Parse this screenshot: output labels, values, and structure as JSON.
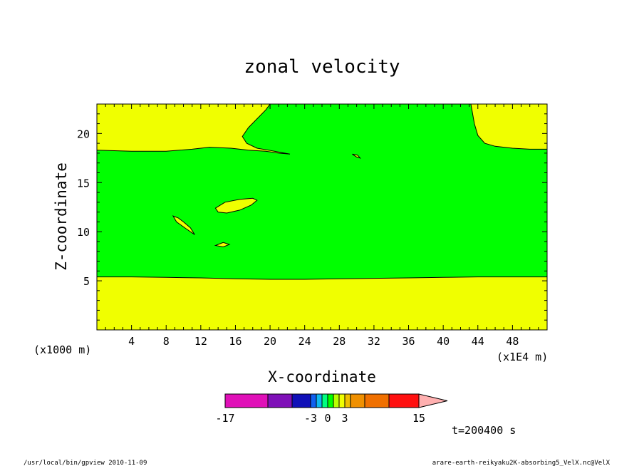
{
  "chart_data": {
    "type": "heatmap",
    "title": "zonal velocity",
    "xlabel": "X-coordinate",
    "ylabel": "Z-coordinate",
    "x_unit_left": "(x1000 m)",
    "x_unit_right": "(x1E4 m)",
    "xlim": [
      0,
      52
    ],
    "ylim": [
      0,
      23
    ],
    "x_ticks": [
      4,
      8,
      12,
      16,
      20,
      24,
      28,
      32,
      36,
      40,
      44,
      48
    ],
    "y_ticks": [
      5,
      10,
      15,
      20
    ],
    "x_tick_labels": [
      "4",
      "8",
      "12",
      "16",
      "20",
      "24",
      "28",
      "32",
      "36",
      "40",
      "44",
      "48"
    ],
    "y_tick_labels": [
      "5",
      "10",
      "15",
      "20"
    ],
    "background_color": "#f0ff00",
    "regions": [
      {
        "name": "main",
        "color": "#00ff00",
        "points": [
          [
            0,
            18.3
          ],
          [
            4,
            18.2
          ],
          [
            8,
            18.2
          ],
          [
            11,
            18.4
          ],
          [
            13,
            18.6
          ],
          [
            15.5,
            18.5
          ],
          [
            17.5,
            18.3
          ],
          [
            19.5,
            18.2
          ],
          [
            21,
            18.0
          ],
          [
            22.3,
            17.9
          ],
          [
            20.5,
            18.2
          ],
          [
            18.5,
            18.5
          ],
          [
            17.3,
            19.0
          ],
          [
            16.8,
            19.7
          ],
          [
            17.5,
            20.6
          ],
          [
            19.5,
            22.4
          ],
          [
            20,
            23
          ],
          [
            43.2,
            23
          ],
          [
            43.6,
            21
          ],
          [
            44,
            19.8
          ],
          [
            44.8,
            19.0
          ],
          [
            46,
            18.7
          ],
          [
            48,
            18.5
          ],
          [
            50,
            18.4
          ],
          [
            52,
            18.4
          ],
          [
            52,
            5.4
          ],
          [
            48,
            5.4
          ],
          [
            44,
            5.4
          ],
          [
            40,
            5.35
          ],
          [
            36,
            5.3
          ],
          [
            32,
            5.25
          ],
          [
            28,
            5.2
          ],
          [
            24,
            5.15
          ],
          [
            20,
            5.15
          ],
          [
            16,
            5.2
          ],
          [
            12,
            5.3
          ],
          [
            8,
            5.35
          ],
          [
            4,
            5.4
          ],
          [
            0,
            5.4
          ]
        ]
      }
    ],
    "islands": [
      {
        "color": "#f0ff00",
        "points": [
          [
            13.7,
            12.4
          ],
          [
            14.8,
            13.0
          ],
          [
            16.5,
            13.3
          ],
          [
            18.0,
            13.4
          ],
          [
            18.5,
            13.2
          ],
          [
            17.8,
            12.7
          ],
          [
            16.5,
            12.2
          ],
          [
            15.0,
            11.9
          ],
          [
            14.0,
            12.0
          ]
        ]
      },
      {
        "color": "#f0ff00",
        "points": [
          [
            8.8,
            11.6
          ],
          [
            9.2,
            11.0
          ],
          [
            10.3,
            10.3
          ],
          [
            11.3,
            9.7
          ],
          [
            10.8,
            10.4
          ],
          [
            10.0,
            11.0
          ],
          [
            9.4,
            11.4
          ]
        ]
      },
      {
        "color": "#f0ff00",
        "points": [
          [
            13.7,
            8.6
          ],
          [
            14.6,
            8.9
          ],
          [
            15.3,
            8.7
          ],
          [
            14.6,
            8.45
          ]
        ]
      },
      {
        "color": "#f0ff00",
        "points": [
          [
            29.5,
            17.9
          ],
          [
            30.1,
            17.8
          ],
          [
            30.4,
            17.5
          ],
          [
            30.0,
            17.6
          ]
        ]
      }
    ],
    "colorbar": {
      "labels": [
        "-17",
        "-3",
        "0",
        "3",
        "15"
      ],
      "colors": [
        "#e010b8",
        "#7f10b8",
        "#1010b8",
        "#1060f0",
        "#10b8f0",
        "#00ff80",
        "#00ff00",
        "#b8ff00",
        "#f0ff00",
        "#f0c000",
        "#f09000",
        "#f07000",
        "#ff1010",
        "#ff8080",
        "#ffb0b0"
      ]
    },
    "time_label": "t=200400 s"
  },
  "footer": {
    "left": "/usr/local/bin/gpview  2010-11-09",
    "right": "arare-earth-reikyaku2K-absorbing5_VelX.nc@VelX"
  }
}
